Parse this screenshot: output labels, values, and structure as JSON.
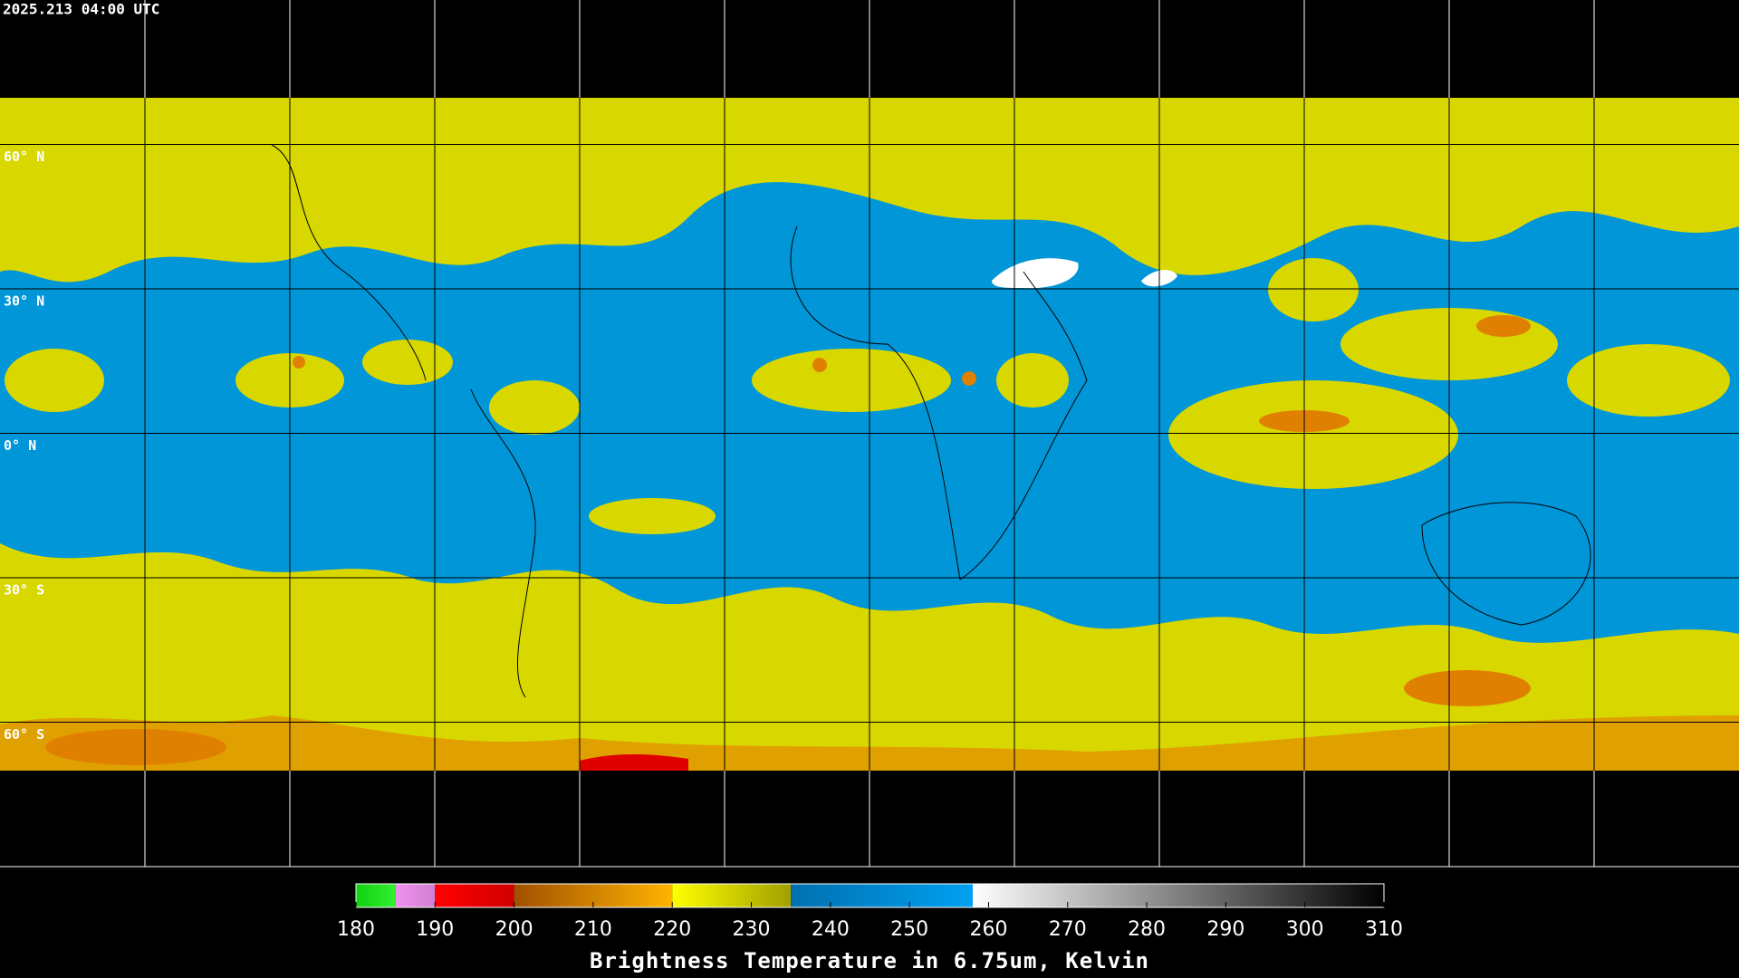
{
  "header": {
    "timestamp": "2025.213 04:00 UTC"
  },
  "map": {
    "parallels": [
      {
        "lat": 60,
        "label": "60° N"
      },
      {
        "lat": 30,
        "label": "30° N"
      },
      {
        "lat": 0,
        "label": "0° N"
      },
      {
        "lat": -30,
        "label": "30° S"
      },
      {
        "lat": -60,
        "label": "60° S"
      }
    ]
  },
  "colorbar": {
    "title": "Brightness Temperature in 6.75um, Kelvin",
    "range": [
      180,
      310
    ],
    "ticks": [
      180,
      190,
      200,
      210,
      220,
      230,
      240,
      250,
      260,
      270,
      280,
      290,
      300,
      310
    ],
    "segments": [
      {
        "from": 180,
        "to": 185,
        "colors": [
          "#10d010",
          "#30f030"
        ]
      },
      {
        "from": 185,
        "to": 190,
        "colors": [
          "#f090f0",
          "#d080d0"
        ]
      },
      {
        "from": 190,
        "to": 200,
        "colors": [
          "#ff0000",
          "#d00000"
        ]
      },
      {
        "from": 200,
        "to": 220,
        "colors": [
          "#a05000",
          "#ffb400"
        ]
      },
      {
        "from": 220,
        "to": 235,
        "colors": [
          "#ffff00",
          "#a0a000"
        ]
      },
      {
        "from": 235,
        "to": 258,
        "colors": [
          "#0070b0",
          "#00a0f0"
        ]
      },
      {
        "from": 258,
        "to": 310,
        "colors": [
          "#ffffff",
          "#000000"
        ]
      }
    ]
  }
}
